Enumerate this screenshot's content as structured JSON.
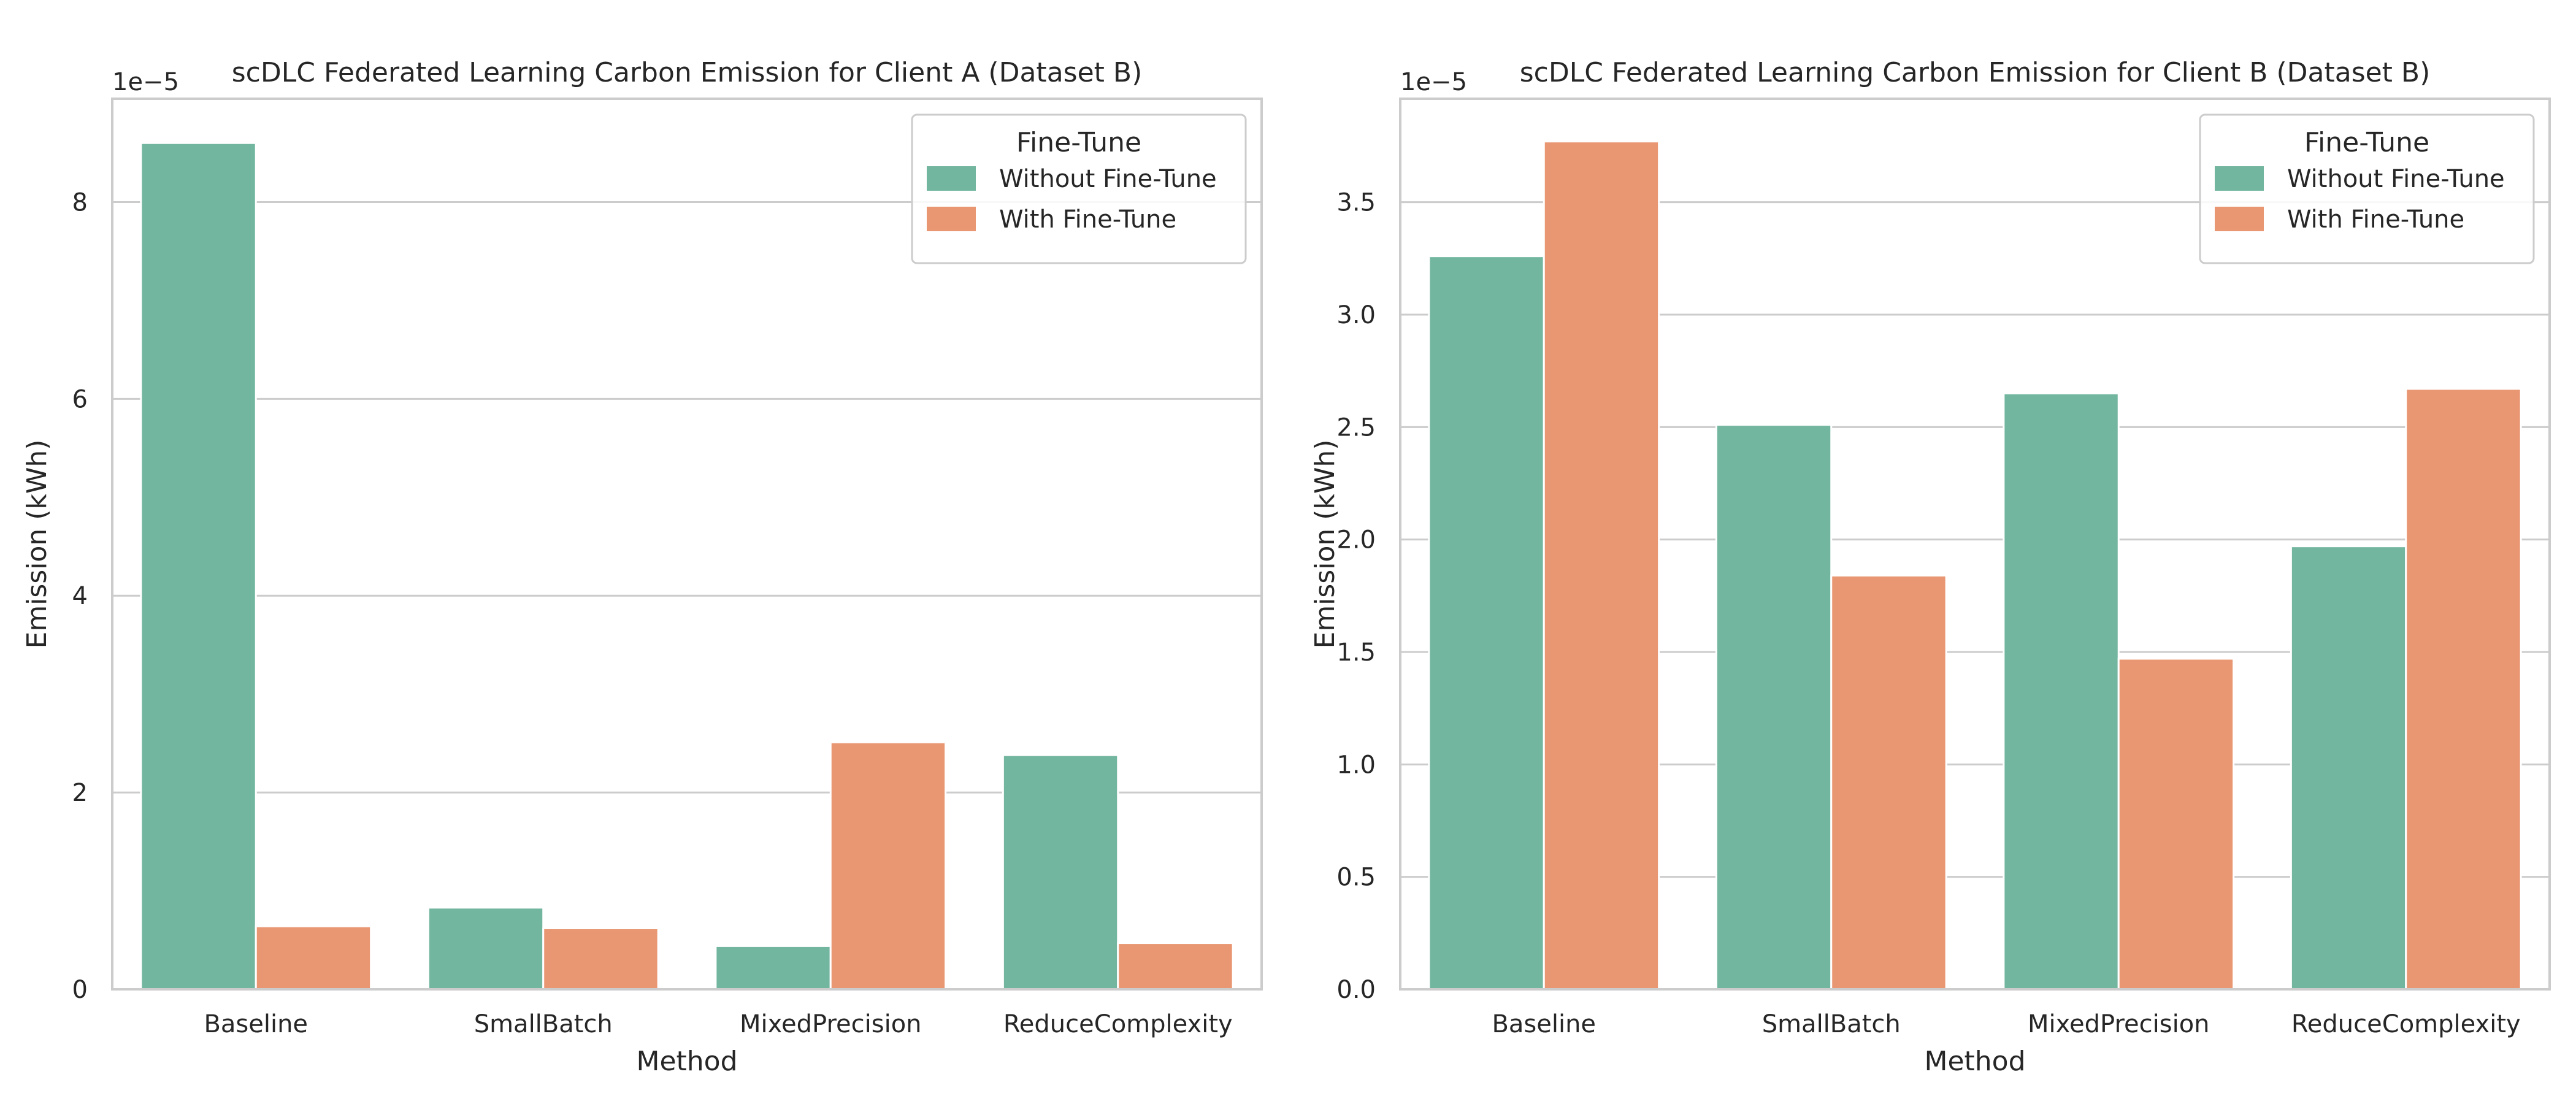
{
  "chart_data": [
    {
      "type": "bar",
      "title": "scDLC Federated Learning Carbon Emission for Client A (Dataset B)",
      "xlabel": "Method",
      "ylabel": "Emission (kWh)",
      "scale_note": "1e−5",
      "categories": [
        "Baseline",
        "SmallBatch",
        "MixedPrecision",
        "ReduceComplexity"
      ],
      "series": [
        {
          "name": "Without Fine-Tune",
          "values": [
            8.6,
            0.83,
            0.44,
            2.38
          ]
        },
        {
          "name": "With Fine-Tune",
          "values": [
            0.64,
            0.62,
            2.51,
            0.47
          ]
        }
      ],
      "ylim": [
        0,
        9.05
      ],
      "yticks": [
        0,
        2,
        4,
        6,
        8
      ],
      "ytick_labels": [
        "0",
        "2",
        "4",
        "6",
        "8"
      ],
      "legend": {
        "title": "Fine-Tune",
        "placement": "top-right"
      },
      "grid": true
    },
    {
      "type": "bar",
      "title": "scDLC Federated Learning Carbon Emission for Client B (Dataset B)",
      "xlabel": "Method",
      "ylabel": "Emission (kWh)",
      "scale_note": "1e−5",
      "categories": [
        "Baseline",
        "SmallBatch",
        "MixedPrecision",
        "ReduceComplexity"
      ],
      "series": [
        {
          "name": "Without Fine-Tune",
          "values": [
            3.26,
            2.51,
            2.65,
            1.97
          ]
        },
        {
          "name": "With Fine-Tune",
          "values": [
            3.77,
            1.84,
            1.47,
            2.67
          ]
        }
      ],
      "ylim": [
        0,
        3.96
      ],
      "yticks": [
        0,
        0.5,
        1.0,
        1.5,
        2.0,
        2.5,
        3.0,
        3.5
      ],
      "ytick_labels": [
        "0.0",
        "0.5",
        "1.0",
        "1.5",
        "2.0",
        "2.5",
        "3.0",
        "3.5"
      ],
      "legend": {
        "title": "Fine-Tune",
        "placement": "top-right"
      },
      "grid": true
    }
  ],
  "colors": {
    "series": [
      "#73b6a0",
      "#e99672"
    ],
    "grid": "#cccccc",
    "frame": "#cccccc",
    "text": "#262626"
  }
}
